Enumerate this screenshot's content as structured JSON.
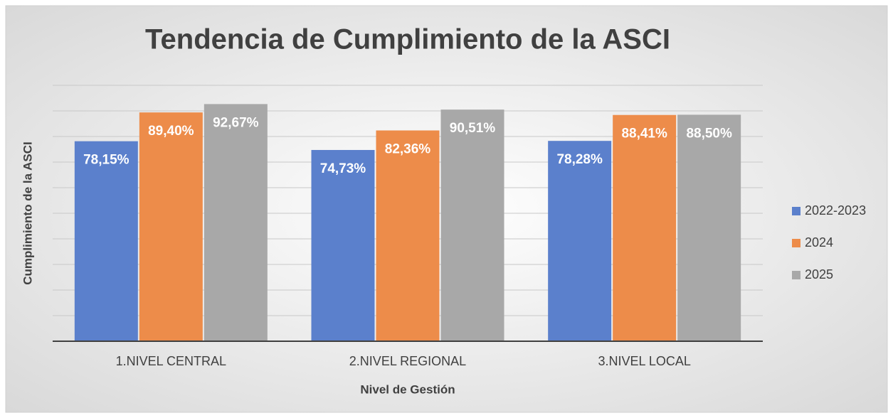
{
  "chart_data": {
    "type": "bar",
    "title": "Tendencia de Cumplimiento de la ASCI",
    "x_label": "Nivel de Gestión",
    "y_label": "Cumplimiento de la ASCI",
    "categories": [
      "1.NIVEL CENTRAL",
      "2.NIVEL REGIONAL",
      "3.NIVEL LOCAL"
    ],
    "series": [
      {
        "name": "2022-2023",
        "color": "#5b80cc",
        "values": [
          78.15,
          74.73,
          78.28
        ],
        "value_labels": [
          "78,15%",
          "74,73%",
          "78,28%"
        ]
      },
      {
        "name": "2024",
        "color": "#ed8c4a",
        "values": [
          89.4,
          82.36,
          88.41
        ],
        "value_labels": [
          "89,40%",
          "82,36%",
          "88,41%"
        ]
      },
      {
        "name": "2025",
        "color": "#a8a8a8",
        "values": [
          92.67,
          90.51,
          88.5
        ],
        "value_labels": [
          "92,67%",
          "90,51%",
          "88,50%"
        ]
      }
    ],
    "ylim": [
      0,
      100
    ],
    "yticks": [
      0,
      10,
      20,
      30,
      40,
      50,
      60,
      70,
      80,
      90,
      100
    ],
    "grid": true,
    "legend": "right"
  }
}
